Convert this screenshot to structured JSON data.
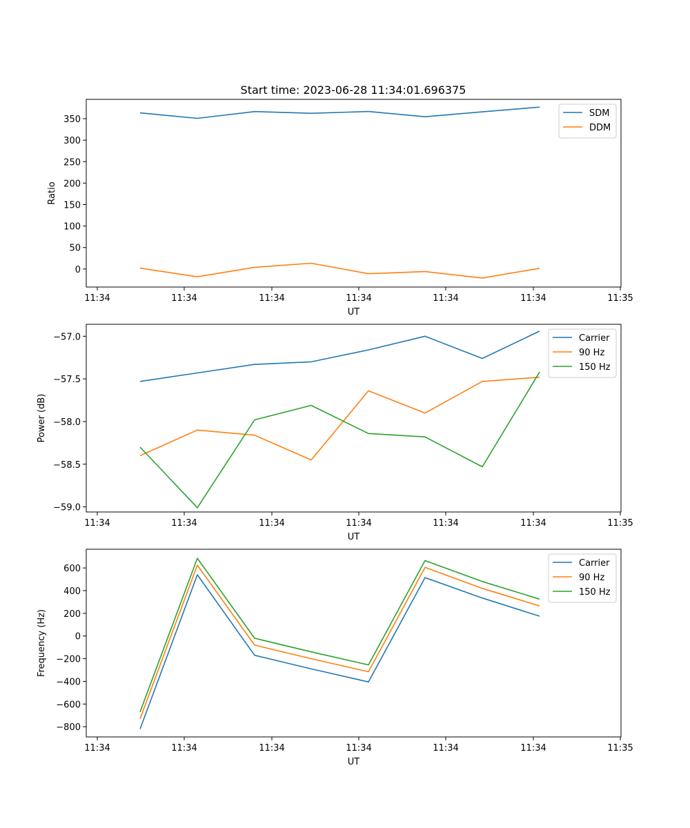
{
  "figure": {
    "title": "Start time: 2023-06-28 11:34:01.696375"
  },
  "chart_data": [
    {
      "type": "line",
      "title": "Start time: 2023-06-28 11:34:01.696375",
      "xlabel": "UT",
      "ylabel": "Ratio",
      "x_tick_labels": [
        "11:34",
        "11:34",
        "11:34",
        "11:34",
        "11:34",
        "11:34",
        "11:35"
      ],
      "y_ticks": [
        0,
        50,
        100,
        150,
        200,
        250,
        300,
        350
      ],
      "ylim": [
        -42,
        395
      ],
      "grid": false,
      "legend_position": "top-right",
      "series": [
        {
          "name": "SDM",
          "color": "#1f77b4",
          "values": [
            363.5,
            350.8,
            366.5,
            362.5,
            366.8,
            354.5,
            366,
            377
          ]
        },
        {
          "name": "DDM",
          "color": "#ff7f0e",
          "values": [
            2,
            -18,
            4,
            13.5,
            -11,
            -6,
            -21,
            1.5
          ]
        }
      ]
    },
    {
      "type": "line",
      "xlabel": "UT",
      "ylabel": "Power (dB)",
      "x_tick_labels": [
        "11:34",
        "11:34",
        "11:34",
        "11:34",
        "11:34",
        "11:34",
        "11:35"
      ],
      "y_ticks": [
        -59.0,
        -58.5,
        -58.0,
        -57.5,
        -57.0
      ],
      "y_tick_labels": [
        "−59.0",
        "−58.5",
        "−58.0",
        "−57.5",
        "−57.0"
      ],
      "ylim": [
        -59.06,
        -56.86
      ],
      "grid": false,
      "legend_position": "top-right",
      "series": [
        {
          "name": "Carrier",
          "color": "#1f77b4",
          "values": [
            -57.53,
            -57.43,
            -57.33,
            -57.3,
            -57.16,
            -57.0,
            -57.26,
            -56.94
          ]
        },
        {
          "name": "90 Hz",
          "color": "#ff7f0e",
          "values": [
            -58.4,
            -58.1,
            -58.16,
            -58.45,
            -57.64,
            -57.9,
            -57.53,
            -57.48
          ]
        },
        {
          "name": "150 Hz",
          "color": "#2ca02c",
          "values": [
            -58.3,
            -59.01,
            -57.98,
            -57.81,
            -58.14,
            -58.18,
            -58.53,
            -57.42
          ]
        }
      ]
    },
    {
      "type": "line",
      "xlabel": "UT",
      "ylabel": "Frequency (Hz)",
      "x_tick_labels": [
        "11:34",
        "11:34",
        "11:34",
        "11:34",
        "11:34",
        "11:34",
        "11:35"
      ],
      "y_ticks": [
        -800,
        -600,
        -400,
        -200,
        0,
        200,
        400,
        600
      ],
      "y_tick_labels": [
        "−800",
        "−600",
        "−400",
        "−200",
        "0",
        "200",
        "400",
        "600"
      ],
      "ylim": [
        -890,
        765
      ],
      "grid": false,
      "legend_position": "top-right",
      "series": [
        {
          "name": "Carrier",
          "color": "#1f77b4",
          "values": [
            -820,
            540,
            -170,
            -290,
            -405,
            515,
            335,
            175
          ]
        },
        {
          "name": "90 Hz",
          "color": "#ff7f0e",
          "values": [
            -730,
            625,
            -80,
            -200,
            -315,
            605,
            420,
            265
          ]
        },
        {
          "name": "150 Hz",
          "color": "#2ca02c",
          "values": [
            -670,
            685,
            -20,
            -140,
            -255,
            665,
            480,
            325
          ]
        }
      ]
    }
  ]
}
